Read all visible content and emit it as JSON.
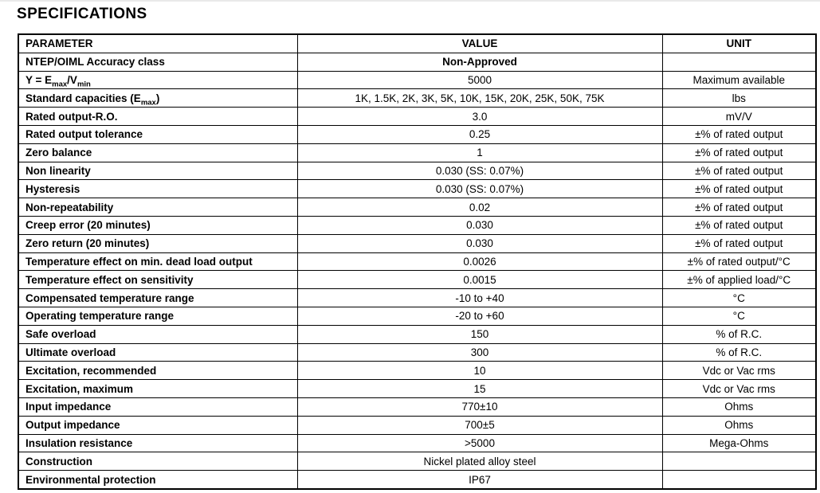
{
  "page": {
    "title": "SPECIFICATIONS",
    "title_bar_color": "#cfe5f1",
    "border_color": "#000000"
  },
  "table": {
    "columns": [
      "PARAMETER",
      "VALUE",
      "UNIT"
    ],
    "rows": [
      {
        "parameter": "NTEP/OIML Accuracy class",
        "value": "Non-Approved",
        "unit": "",
        "value_bold": true
      },
      {
        "parameter": "Y = E~max~/V~min~",
        "value": "5000",
        "unit": "Maximum available"
      },
      {
        "parameter": "Standard capacities (E~max~)",
        "value": "1K, 1.5K, 2K, 3K, 5K, 10K, 15K, 20K, 25K, 50K, 75K",
        "unit": "lbs"
      },
      {
        "parameter": "Rated output-R.O.",
        "value": "3.0",
        "unit": "mV/V"
      },
      {
        "parameter": "Rated output tolerance",
        "value": "0.25",
        "unit": "±% of rated output"
      },
      {
        "parameter": "Zero balance",
        "value": "1",
        "unit": "±% of rated output"
      },
      {
        "parameter": "Non linearity",
        "value": "0.030 (SS: 0.07%)",
        "unit": "±% of rated output"
      },
      {
        "parameter": "Hysteresis",
        "value": "0.030 (SS: 0.07%)",
        "unit": "±% of rated output"
      },
      {
        "parameter": "Non-repeatability",
        "value": "0.02",
        "unit": "±% of rated output"
      },
      {
        "parameter": "Creep error (20 minutes)",
        "value": "0.030",
        "unit": "±% of rated output"
      },
      {
        "parameter": "Zero return (20 minutes)",
        "value": "0.030",
        "unit": "±% of rated output"
      },
      {
        "parameter": "Temperature effect on min. dead load output",
        "value": "0.0026",
        "unit": "±% of rated output/°C"
      },
      {
        "parameter": "Temperature effect on sensitivity",
        "value": "0.0015",
        "unit": "±% of applied load/°C"
      },
      {
        "parameter": "Compensated temperature range",
        "value": "-10 to +40",
        "unit": "°C"
      },
      {
        "parameter": "Operating temperature range",
        "value": "-20 to +60",
        "unit": "°C"
      },
      {
        "parameter": "Safe overload",
        "value": "150",
        "unit": "% of R.C."
      },
      {
        "parameter": "Ultimate overload",
        "value": "300",
        "unit": "% of R.C."
      },
      {
        "parameter": "Excitation, recommended",
        "value": "10",
        "unit": "Vdc or Vac rms"
      },
      {
        "parameter": "Excitation, maximum",
        "value": "15",
        "unit": "Vdc or Vac rms"
      },
      {
        "parameter": "Input impedance",
        "value": "770±10",
        "unit": "Ohms"
      },
      {
        "parameter": "Output impedance",
        "value": "700±5",
        "unit": "Ohms"
      },
      {
        "parameter": "Insulation resistance",
        "value": ">5000",
        "unit": "Mega-Ohms"
      },
      {
        "parameter": "Construction",
        "value": "Nickel plated alloy steel",
        "unit": ""
      },
      {
        "parameter": "Environmental protection",
        "value": "IP67",
        "unit": ""
      }
    ]
  }
}
